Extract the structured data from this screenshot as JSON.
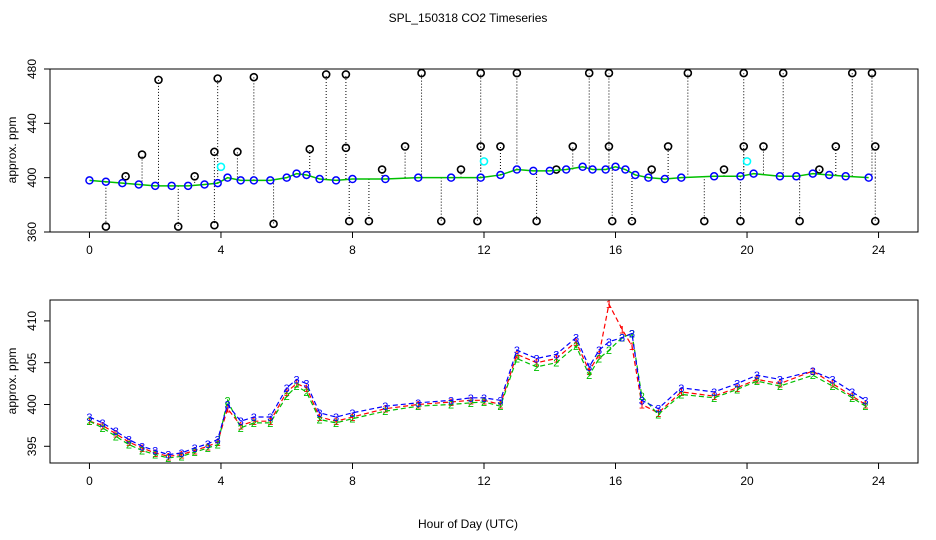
{
  "title": "SPL_150318  CO2 Timeseries",
  "xlabel": "Hour of Day (UTC)",
  "colors": {
    "hourly_outlier": "#000000",
    "highlight": "#00ffff",
    "series_1": "#ff0000",
    "series_2": "#00c000",
    "series_3": "#0000ff"
  },
  "chart_data": [
    {
      "type": "scatter",
      "panel": "top",
      "ylabel": "approx. ppm",
      "xlim": [
        -1.2,
        25.2
      ],
      "ylim": [
        360,
        480
      ],
      "x_ticks": [
        0,
        4,
        8,
        12,
        16,
        20,
        24
      ],
      "y_ticks": [
        360,
        400,
        440,
        480
      ],
      "series": [
        {
          "name": "hourly_outliers_high",
          "marker": "o",
          "color": "#000000",
          "x": [
            2.1,
            3.9,
            5.0,
            7.2,
            7.8,
            10.1,
            11.9,
            13.0,
            15.2,
            15.8,
            18.2,
            19.9,
            21.1,
            23.2,
            23.8
          ],
          "values": [
            472,
            473,
            474,
            476,
            476,
            477,
            477,
            477,
            477,
            477,
            477,
            477,
            477,
            477,
            477
          ]
        },
        {
          "name": "hourly_outliers_mid",
          "marker": "o",
          "color": "#000000",
          "x": [
            1.1,
            1.6,
            3.2,
            3.8,
            4.5,
            6.7,
            7.8,
            8.9,
            9.6,
            11.3,
            11.9,
            12.5,
            14.2,
            14.7,
            15.8,
            17.1,
            17.6,
            19.3,
            19.9,
            20.5,
            22.2,
            22.7,
            23.9
          ],
          "values": [
            401,
            417,
            401,
            419,
            419,
            421,
            422,
            406,
            423,
            406,
            423,
            423,
            406,
            423,
            423,
            406,
            423,
            406,
            423,
            423,
            406,
            423,
            423
          ]
        },
        {
          "name": "hourly_outliers_low",
          "marker": "o",
          "color": "#000000",
          "x": [
            0.5,
            2.7,
            3.8,
            5.6,
            7.9,
            8.5,
            10.7,
            11.8,
            13.6,
            15.9,
            16.5,
            18.7,
            19.8,
            21.6,
            23.9
          ],
          "values": [
            364,
            364,
            365,
            366,
            368,
            368,
            368,
            368,
            368,
            368,
            368,
            368,
            368,
            368,
            368
          ]
        },
        {
          "name": "highlight",
          "marker": "o",
          "color": "#00ffff",
          "x": [
            4.0,
            12.0,
            20.0
          ],
          "values": [
            408,
            412,
            412
          ]
        },
        {
          "name": "timeseries",
          "marker": "o",
          "color": "#0000ff",
          "x": [
            0,
            0.5,
            1,
            1.5,
            2,
            2.5,
            3,
            3.5,
            3.9,
            4.2,
            4.6,
            5,
            5.5,
            6,
            6.3,
            6.6,
            7,
            7.5,
            8,
            9,
            10,
            11,
            11.9,
            12.5,
            13,
            13.5,
            14,
            14.5,
            15,
            15.3,
            15.7,
            16,
            16.3,
            16.6,
            17,
            17.5,
            18,
            19,
            19.8,
            20.2,
            21,
            21.5,
            22,
            22.5,
            23,
            23.7
          ],
          "values": [
            398,
            397,
            396,
            395,
            394,
            394,
            394,
            395,
            396,
            400,
            398,
            398,
            398,
            400,
            403,
            402,
            399,
            398,
            399,
            399,
            400,
            400,
            400,
            402,
            406,
            405,
            405,
            406,
            408,
            406,
            406,
            408,
            406,
            402,
            400,
            399,
            400,
            401,
            401,
            403,
            401,
            401,
            403,
            402,
            401,
            400
          ]
        }
      ]
    },
    {
      "type": "line",
      "panel": "bottom",
      "ylabel": "approx. ppm",
      "xlim": [
        -1.2,
        25.2
      ],
      "ylim": [
        393,
        412.5
      ],
      "x_ticks": [
        0,
        4,
        8,
        12,
        16,
        20,
        24
      ],
      "y_ticks": [
        395,
        400,
        405,
        410
      ],
      "series": [
        {
          "name": "1",
          "marker": "1",
          "color": "#ff0000",
          "x": [
            0,
            0.4,
            0.8,
            1.2,
            1.6,
            2.0,
            2.4,
            2.8,
            3.2,
            3.6,
            3.9,
            4.2,
            4.6,
            5.0,
            5.5,
            6.0,
            6.3,
            6.6,
            7.0,
            7.5,
            8.0,
            9.0,
            10.0,
            11.0,
            11.6,
            12.0,
            12.5,
            13.0,
            13.6,
            14.2,
            14.8,
            15.2,
            15.5,
            15.8,
            16.2,
            16.5,
            16.8,
            17.3,
            18.0,
            19.0,
            19.7,
            20.3,
            21.0,
            22.0,
            22.6,
            23.2,
            23.6
          ],
          "values": [
            398,
            397.5,
            396.5,
            395.5,
            394.8,
            394.2,
            393.8,
            394.0,
            394.5,
            395.0,
            395.5,
            399.5,
            397.5,
            398.0,
            398.0,
            401.5,
            402.5,
            402.0,
            398.5,
            398.0,
            398.5,
            399.5,
            400.0,
            400.3,
            400.5,
            400.5,
            400.0,
            406.0,
            405.0,
            405.5,
            407.5,
            404.0,
            406.0,
            412.0,
            409.0,
            407.0,
            400.0,
            399.0,
            401.5,
            401.0,
            402.0,
            403.0,
            402.5,
            404.0,
            402.5,
            401.0,
            400.0
          ]
        },
        {
          "name": "2",
          "marker": "2",
          "color": "#00c000",
          "x": [
            0,
            0.4,
            0.8,
            1.2,
            1.6,
            2.0,
            2.4,
            2.8,
            3.2,
            3.6,
            3.9,
            4.2,
            4.6,
            5.0,
            5.5,
            6.0,
            6.3,
            6.6,
            7.0,
            7.5,
            8.0,
            9.0,
            10.0,
            11.0,
            11.6,
            12.0,
            12.5,
            13.0,
            13.6,
            14.2,
            14.8,
            15.2,
            15.5,
            15.8,
            16.2,
            16.5,
            16.8,
            17.3,
            18.0,
            19.0,
            19.7,
            20.3,
            21.0,
            22.0,
            22.6,
            23.2,
            23.6
          ],
          "values": [
            398,
            397.2,
            396.2,
            395.2,
            394.5,
            394.0,
            393.6,
            393.8,
            394.3,
            394.8,
            395.2,
            400.5,
            397.2,
            397.8,
            397.8,
            401.0,
            402.2,
            401.5,
            398.2,
            397.8,
            398.3,
            399.2,
            399.8,
            400.0,
            400.2,
            400.3,
            399.8,
            405.5,
            404.5,
            405.0,
            407.0,
            403.5,
            405.5,
            406.5,
            408.0,
            408.5,
            401.0,
            398.8,
            401.2,
            400.8,
            401.8,
            402.8,
            402.2,
            403.5,
            402.2,
            400.8,
            399.8
          ]
        },
        {
          "name": "3",
          "marker": "3",
          "color": "#0000ff",
          "x": [
            0,
            0.4,
            0.8,
            1.2,
            1.6,
            2.0,
            2.4,
            2.8,
            3.2,
            3.6,
            3.9,
            4.2,
            4.6,
            5.0,
            5.5,
            6.0,
            6.3,
            6.6,
            7.0,
            7.5,
            8.0,
            9.0,
            10.0,
            11.0,
            11.6,
            12.0,
            12.5,
            13.0,
            13.6,
            14.2,
            14.8,
            15.2,
            15.5,
            15.8,
            16.2,
            16.5,
            16.8,
            17.3,
            18.0,
            19.0,
            19.7,
            20.3,
            21.0,
            22.0,
            22.6,
            23.2,
            23.6
          ],
          "values": [
            398.5,
            397.8,
            396.8,
            395.8,
            395.0,
            394.5,
            394.0,
            394.2,
            394.8,
            395.3,
            395.8,
            400.0,
            398.0,
            398.5,
            398.5,
            402.0,
            403.0,
            402.5,
            399.0,
            398.5,
            399.0,
            399.8,
            400.2,
            400.5,
            400.8,
            400.8,
            400.5,
            406.5,
            405.5,
            406.0,
            408.0,
            404.5,
            406.5,
            407.5,
            408.0,
            408.5,
            400.5,
            399.5,
            402.0,
            401.5,
            402.5,
            403.5,
            403.0,
            404.0,
            403.0,
            401.5,
            400.5
          ]
        }
      ]
    }
  ]
}
